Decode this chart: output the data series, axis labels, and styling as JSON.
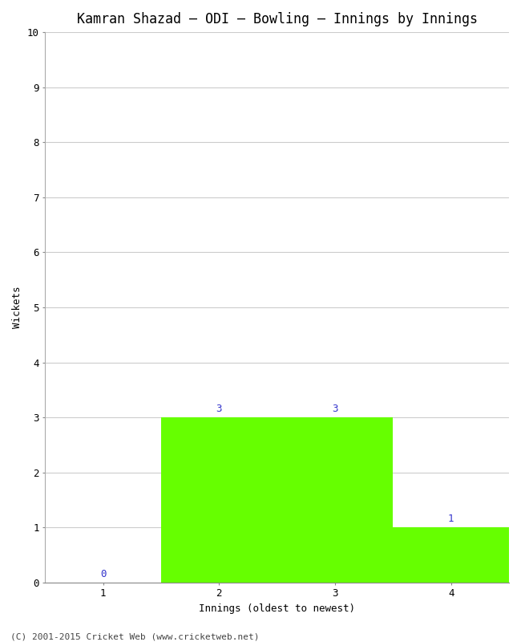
{
  "title": "Kamran Shazad – ODI – Bowling – Innings by Innings",
  "xlabel": "Innings (oldest to newest)",
  "ylabel": "Wickets",
  "categories": [
    "1",
    "2",
    "3",
    "4"
  ],
  "values": [
    0,
    3,
    3,
    1
  ],
  "bar_color": "#66ff00",
  "bar_edge_color": "#66ff00",
  "label_color": "#3333cc",
  "ylim": [
    0,
    10
  ],
  "yticks": [
    0,
    1,
    2,
    3,
    4,
    5,
    6,
    7,
    8,
    9,
    10
  ],
  "background_color": "#ffffff",
  "grid_color": "#cccccc",
  "footer": "(C) 2001-2015 Cricket Web (www.cricketweb.net)",
  "title_fontsize": 12,
  "axis_label_fontsize": 9,
  "tick_fontsize": 9,
  "annotation_fontsize": 9,
  "footer_fontsize": 8
}
